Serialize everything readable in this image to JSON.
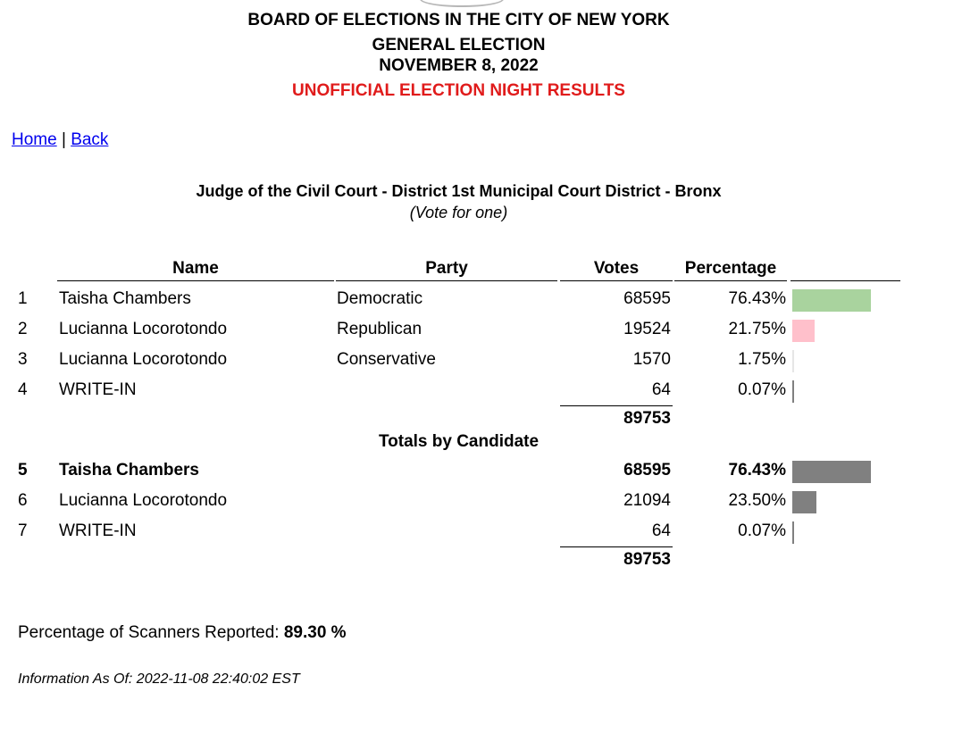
{
  "header": {
    "line1": "BOARD OF ELECTIONS IN THE CITY OF NEW YORK",
    "line2": "GENERAL ELECTION",
    "line3": "NOVEMBER 8, 2022",
    "line4": "UNOFFICIAL ELECTION NIGHT RESULTS",
    "line4_color": "#e01b1b"
  },
  "nav": {
    "home": "Home",
    "separator": "|",
    "back": "Back"
  },
  "race": {
    "title": "Judge of the Civil Court - District 1st Municipal Court District - Bronx",
    "subtitle": "(Vote for one)"
  },
  "columns": {
    "name": "Name",
    "party": "Party",
    "votes": "Votes",
    "percentage": "Percentage"
  },
  "results": [
    {
      "num": "1",
      "name": "Taisha Chambers",
      "party": "Democratic",
      "votes": "68595",
      "pct": "76.43%",
      "share": 76.43,
      "bar_color": "#a9d39e"
    },
    {
      "num": "2",
      "name": "Lucianna Locorotondo",
      "party": "Republican",
      "votes": "19524",
      "pct": "21.75%",
      "share": 21.75,
      "bar_color": "#ffc0cb"
    },
    {
      "num": "3",
      "name": "Lucianna Locorotondo",
      "party": "Conservative",
      "votes": "1570",
      "pct": "1.75%",
      "share": 1.75,
      "bar_color": "#e6e6e6"
    },
    {
      "num": "4",
      "name": "WRITE-IN",
      "party": "",
      "votes": "64",
      "pct": "0.07%",
      "share": 0.07,
      "bar_color": "#808080"
    }
  ],
  "results_total": "89753",
  "totals_label": "Totals by Candidate",
  "totals": [
    {
      "num": "5",
      "name": "Taisha Chambers",
      "votes": "68595",
      "pct": "76.43%",
      "share": 76.43,
      "bar_color": "#808080",
      "winner": true
    },
    {
      "num": "6",
      "name": "Lucianna Locorotondo",
      "votes": "21094",
      "pct": "23.50%",
      "share": 23.5,
      "bar_color": "#808080",
      "winner": false
    },
    {
      "num": "7",
      "name": "WRITE-IN",
      "votes": "64",
      "pct": "0.07%",
      "share": 0.07,
      "bar_color": "#808080",
      "winner": false
    }
  ],
  "totals_total": "89753",
  "scanners": {
    "label": "Percentage of Scanners Reported:",
    "value": "89.30 %"
  },
  "as_of": "Information As Of: 2022-11-08 22:40:02 EST"
}
